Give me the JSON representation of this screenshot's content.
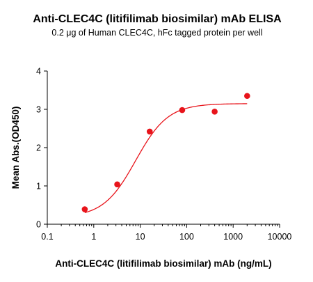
{
  "chart_data": {
    "type": "scatter",
    "title": "Anti-CLEC4C (litifilimab biosimilar) mAb ELISA",
    "subtitle": "0.2 μg of Human CLEC4C, hFc tagged protein per well",
    "xlabel": "Anti-CLEC4C (litifilimab biosimilar) mAb (ng/mL)",
    "ylabel": "Mean Abs.(OD450)",
    "x_scale": "log",
    "xlim": [
      0.1,
      10000
    ],
    "ylim": [
      0,
      4
    ],
    "x_ticks": [
      0.1,
      1,
      10,
      100,
      1000,
      10000
    ],
    "x_tick_labels": [
      "0.1",
      "1",
      "10",
      "100",
      "1000",
      "10000"
    ],
    "y_ticks": [
      0,
      1,
      2,
      3,
      4
    ],
    "y_tick_labels": [
      "0",
      "1",
      "2",
      "3",
      "4"
    ],
    "grid": false,
    "legend": "none",
    "series": [
      {
        "x": [
          0.64,
          3.2,
          16,
          80,
          400,
          2000
        ],
        "y": [
          0.39,
          1.04,
          2.42,
          2.98,
          2.94,
          3.35
        ],
        "color": "#e8141b"
      }
    ],
    "fit_curve": {
      "type": "4PL",
      "bottom": 0.18,
      "top": 3.15,
      "ec50": 8.0,
      "hill": 1.25,
      "x_range": [
        0.64,
        2000
      ],
      "color": "#e8141b"
    }
  }
}
